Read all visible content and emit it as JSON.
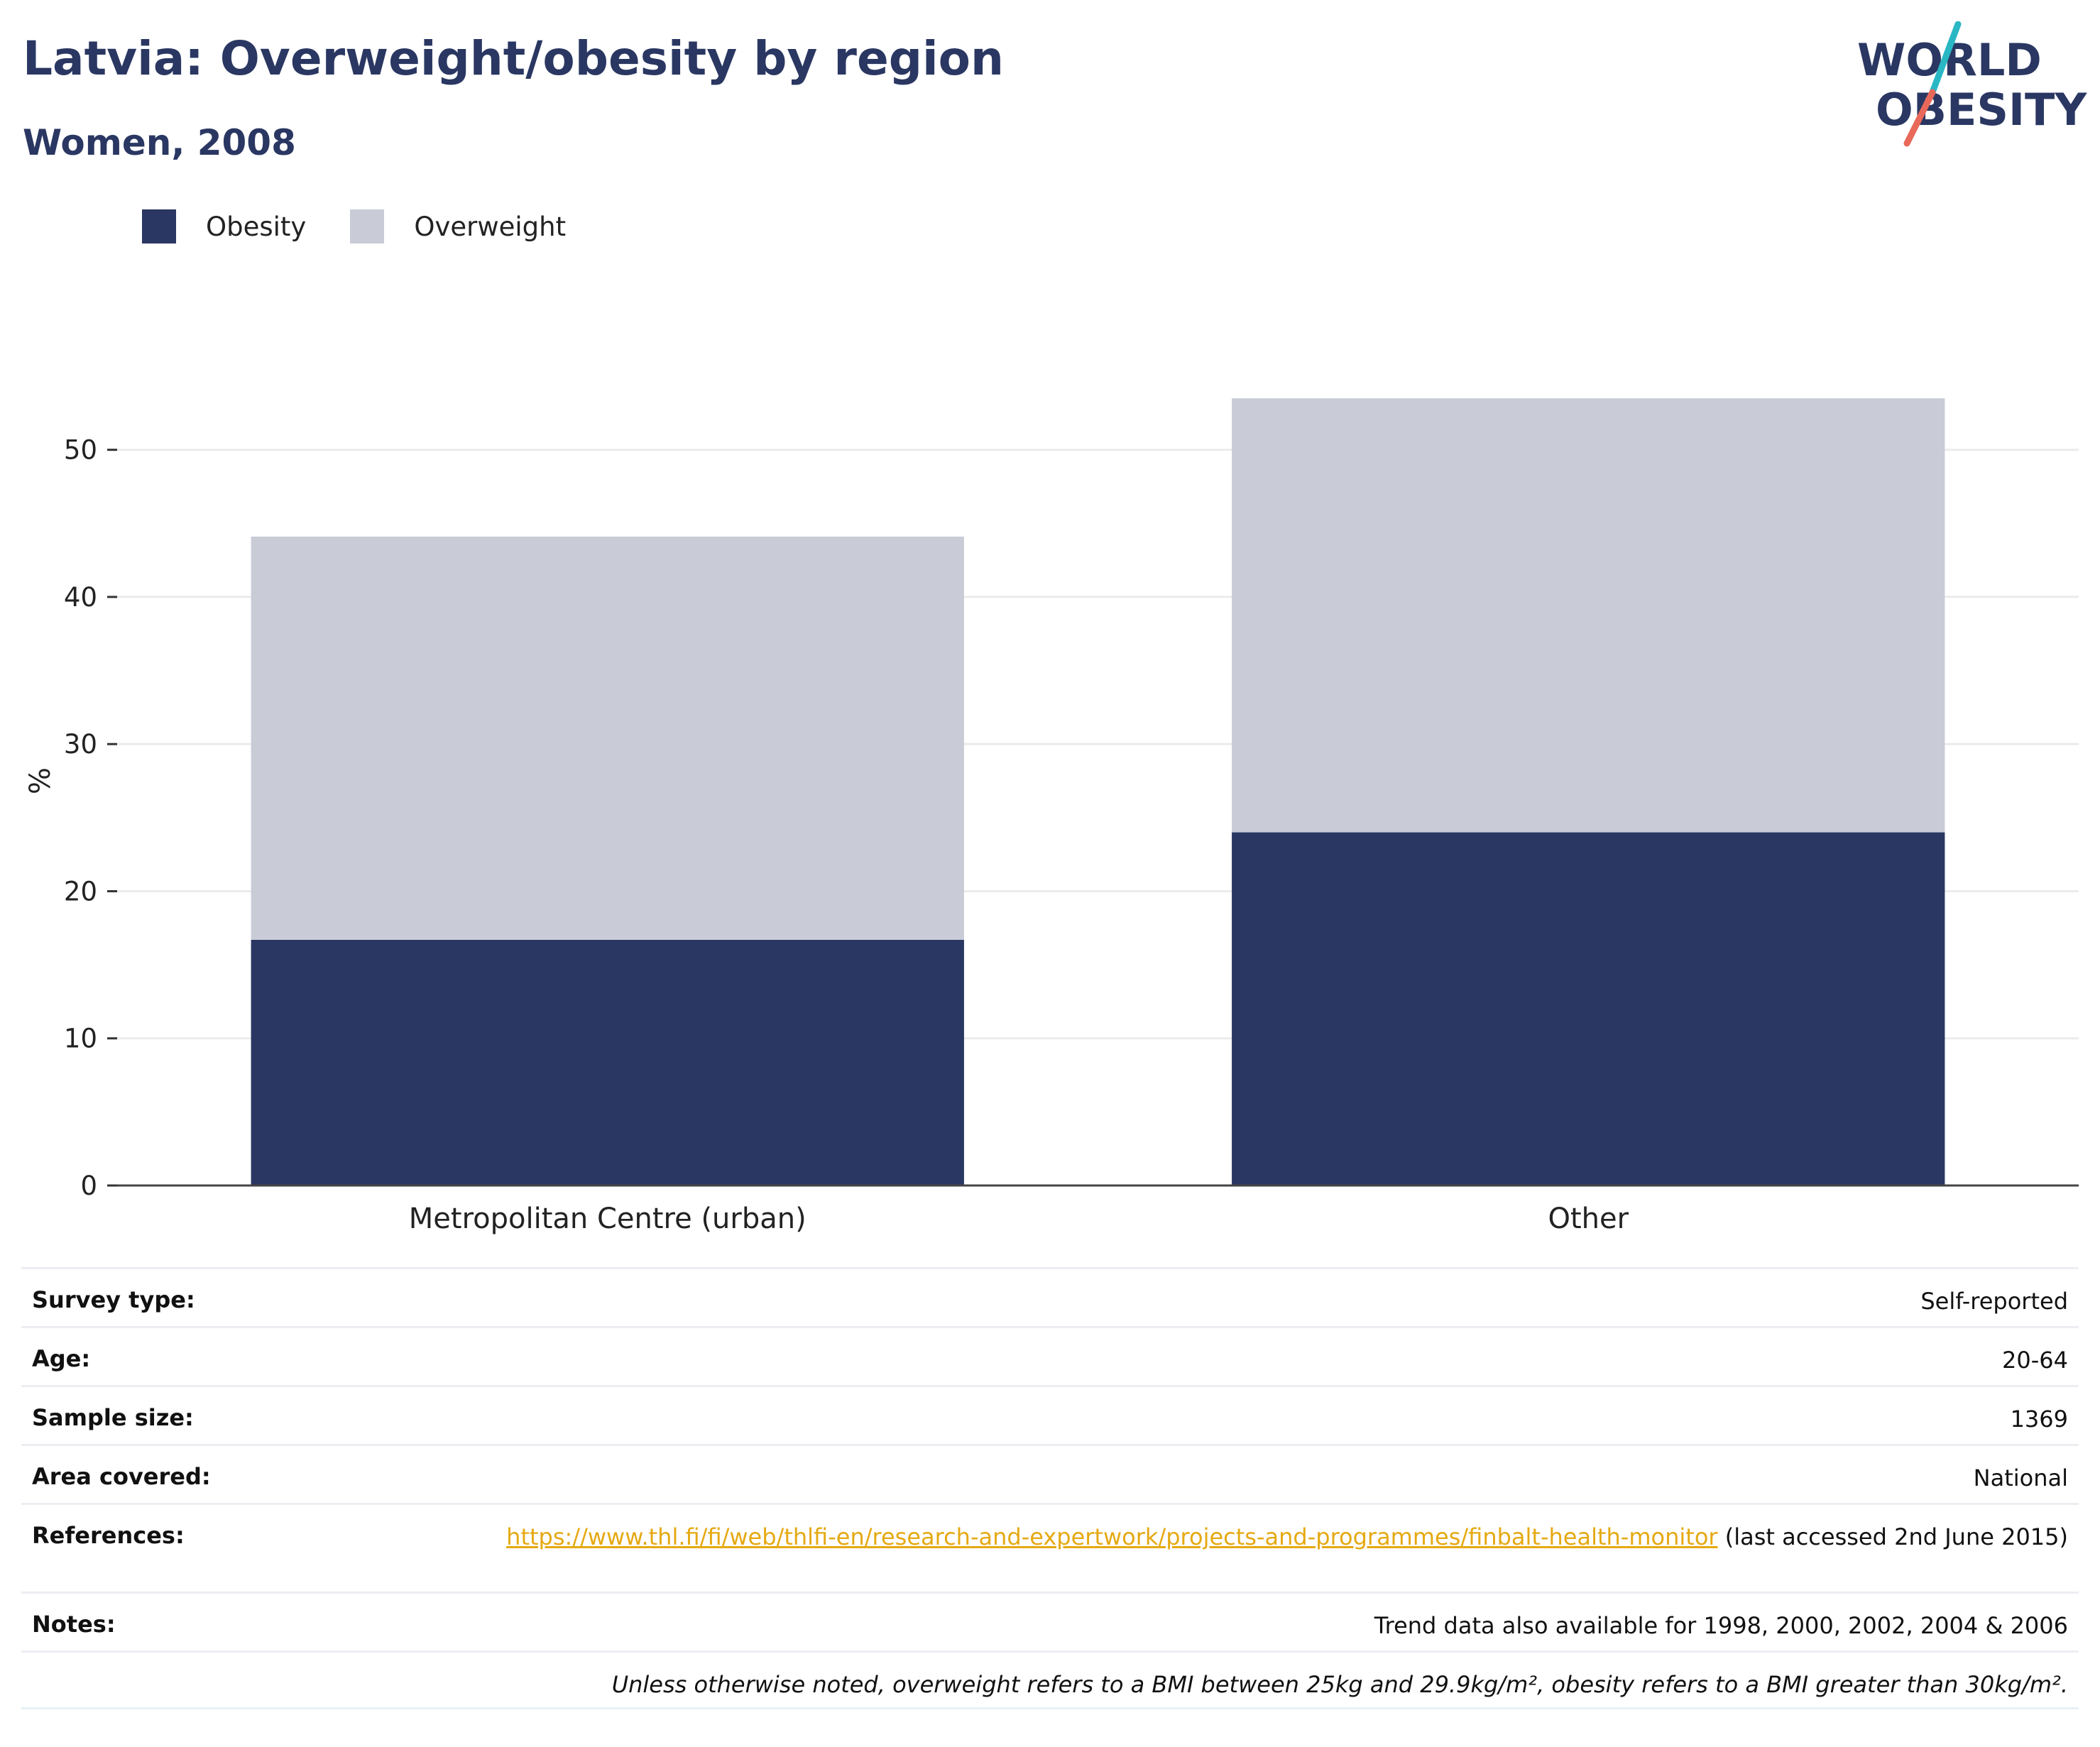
{
  "header": {
    "title": "Latvia: Overweight/obesity by region",
    "subtitle": "Women, 2008"
  },
  "logo": {
    "line1": "WORLD",
    "line2": "OBESITY"
  },
  "colors": {
    "obesity": "#2a3762",
    "overweight": "#c9ccd7",
    "title": "#2a3762",
    "link": "#e5a912",
    "logo_teal": "#2ab7c4",
    "logo_coral": "#e8685a"
  },
  "chart_data": {
    "type": "bar",
    "stacked": true,
    "categories": [
      "Metropolitan Centre (urban)",
      "Other"
    ],
    "series": [
      {
        "name": "Obesity",
        "values": [
          16.7,
          24.0
        ],
        "color": "#2a3762"
      },
      {
        "name": "Overweight",
        "values": [
          27.4,
          29.5
        ],
        "color": "#c9ccd7"
      }
    ],
    "ylabel": "%",
    "ylim": [
      0,
      55
    ],
    "yticks": [
      0,
      10,
      20,
      30,
      40,
      50
    ],
    "grid": true,
    "legend_position": "top-left"
  },
  "info": {
    "survey_type": {
      "label": "Survey type:",
      "value": "Self-reported"
    },
    "age": {
      "label": "Age:",
      "value": "20-64"
    },
    "sample_size": {
      "label": "Sample size:",
      "value": "1369"
    },
    "area_covered": {
      "label": "Area covered:",
      "value": "National"
    },
    "references": {
      "label": "References:",
      "link": "https://www.thl.fi/fi/web/thlfi-en/research-and-expertwork/projects-and-programmes/finbalt-health-monitor",
      "suffix": " (last accessed 2nd June 2015)"
    },
    "notes": {
      "label": "Notes:",
      "value": "Trend data also available for 1998, 2000, 2002, 2004 & 2006"
    },
    "footnote": "Unless otherwise noted, overweight refers to a BMI between 25kg and 29.9kg/m², obesity refers to a BMI greater than 30kg/m²."
  }
}
